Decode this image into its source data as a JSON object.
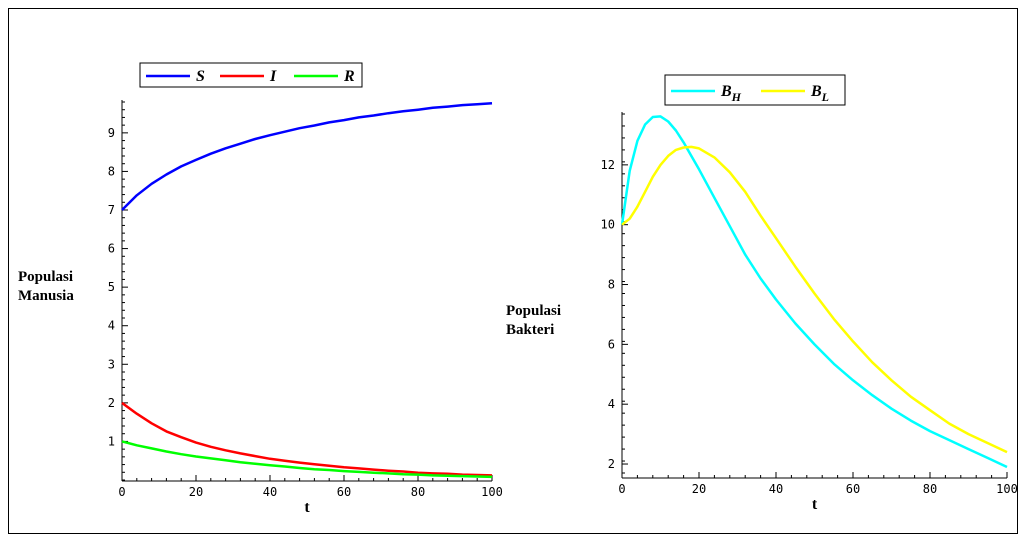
{
  "chart_data": [
    {
      "type": "line",
      "ylabel_lines": [
        "Populasi",
        "Manusia"
      ],
      "xlabel": "t",
      "xlim": [
        0,
        100
      ],
      "ylim": [
        0,
        9.8
      ],
      "xticks": [
        0,
        20,
        40,
        60,
        80,
        100
      ],
      "yticks": [
        1,
        2,
        3,
        4,
        5,
        6,
        7,
        8,
        9
      ],
      "legend_position": "top-left",
      "series": [
        {
          "name": "S",
          "color": "#0000ff",
          "x": [
            0,
            4,
            8,
            12,
            16,
            20,
            24,
            28,
            32,
            36,
            40,
            44,
            48,
            52,
            56,
            60,
            64,
            68,
            72,
            76,
            80,
            84,
            88,
            92,
            96,
            100
          ],
          "y": [
            7.0,
            7.38,
            7.68,
            7.92,
            8.13,
            8.3,
            8.46,
            8.6,
            8.72,
            8.84,
            8.94,
            9.03,
            9.12,
            9.19,
            9.27,
            9.33,
            9.4,
            9.45,
            9.51,
            9.56,
            9.6,
            9.65,
            9.68,
            9.72,
            9.74,
            9.77
          ]
        },
        {
          "name": "I",
          "color": "#ff0000",
          "x": [
            0,
            4,
            8,
            12,
            16,
            20,
            24,
            28,
            32,
            36,
            40,
            44,
            48,
            52,
            56,
            60,
            64,
            68,
            72,
            76,
            80,
            84,
            88,
            92,
            96,
            100
          ],
          "y": [
            2.0,
            1.72,
            1.47,
            1.26,
            1.11,
            0.97,
            0.86,
            0.77,
            0.69,
            0.62,
            0.55,
            0.5,
            0.45,
            0.41,
            0.37,
            0.33,
            0.3,
            0.27,
            0.24,
            0.22,
            0.19,
            0.17,
            0.16,
            0.14,
            0.13,
            0.12
          ]
        },
        {
          "name": "R",
          "color": "#00ff00",
          "x": [
            0,
            4,
            8,
            12,
            16,
            20,
            24,
            28,
            32,
            36,
            40,
            44,
            48,
            52,
            56,
            60,
            64,
            68,
            72,
            76,
            80,
            84,
            88,
            92,
            96,
            100
          ],
          "y": [
            1.0,
            0.9,
            0.82,
            0.74,
            0.67,
            0.61,
            0.56,
            0.51,
            0.46,
            0.42,
            0.38,
            0.35,
            0.31,
            0.28,
            0.26,
            0.23,
            0.21,
            0.19,
            0.17,
            0.15,
            0.14,
            0.12,
            0.11,
            0.1,
            0.09,
            0.08
          ]
        }
      ]
    },
    {
      "type": "line",
      "ylabel_lines": [
        "Populasi",
        "Bakteri"
      ],
      "xlabel": "t",
      "xlim": [
        0,
        100
      ],
      "ylim": [
        1.7,
        13.7
      ],
      "xticks": [
        0,
        20,
        40,
        60,
        80,
        100
      ],
      "yticks": [
        2,
        4,
        6,
        8,
        10,
        12
      ],
      "legend_position": "top-center",
      "series": [
        {
          "name": "B",
          "subscript": "H",
          "color": "#00ffff",
          "x": [
            0,
            2,
            4,
            6,
            8,
            10,
            12,
            14,
            16,
            18,
            20,
            24,
            28,
            32,
            36,
            40,
            45,
            50,
            55,
            60,
            65,
            70,
            75,
            80,
            85,
            90,
            95,
            100
          ],
          "y": [
            10.0,
            11.8,
            12.8,
            13.35,
            13.6,
            13.62,
            13.45,
            13.15,
            12.75,
            12.3,
            11.85,
            10.9,
            9.95,
            9.0,
            8.2,
            7.5,
            6.7,
            6.0,
            5.35,
            4.8,
            4.3,
            3.85,
            3.45,
            3.1,
            2.8,
            2.5,
            2.2,
            1.9
          ]
        },
        {
          "name": "B",
          "subscript": "L",
          "color": "#ffff00",
          "x": [
            0,
            2,
            4,
            6,
            8,
            10,
            12,
            14,
            16,
            18,
            20,
            24,
            28,
            32,
            36,
            40,
            45,
            50,
            55,
            60,
            65,
            70,
            75,
            80,
            85,
            90,
            95,
            100
          ],
          "y": [
            10.0,
            10.2,
            10.6,
            11.1,
            11.6,
            12.0,
            12.3,
            12.5,
            12.58,
            12.6,
            12.55,
            12.25,
            11.75,
            11.1,
            10.3,
            9.55,
            8.6,
            7.7,
            6.85,
            6.1,
            5.4,
            4.8,
            4.25,
            3.8,
            3.35,
            3.0,
            2.7,
            2.4
          ]
        }
      ]
    }
  ]
}
